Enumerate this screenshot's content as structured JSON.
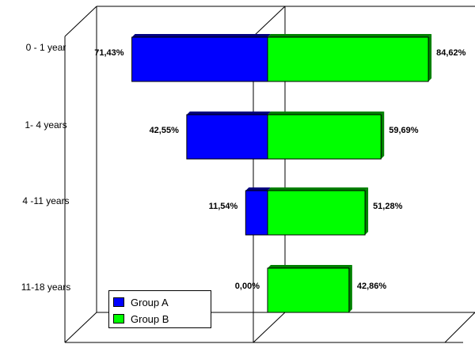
{
  "chart_data": {
    "type": "bar",
    "orientation": "horizontal-diverging",
    "categories": [
      "0 - 1 year",
      "1- 4 years",
      "4 -11 years",
      "11-18 years"
    ],
    "series": [
      {
        "name": "Group A",
        "values": [
          71.43,
          42.55,
          11.54,
          0.0
        ],
        "labels": [
          "71,43%",
          "42,55%",
          "11,54%",
          "0,00%"
        ],
        "color": "#0000ff",
        "direction": "left"
      },
      {
        "name": "Group B",
        "values": [
          84.62,
          59.69,
          51.28,
          42.86
        ],
        "labels": [
          "84,62%",
          "59,69%",
          "51,28%",
          "42,86%"
        ],
        "color": "#00ff00",
        "direction": "right"
      }
    ],
    "unit": "%",
    "style": "3d",
    "grid": false,
    "legend_position": "bottom-left"
  }
}
